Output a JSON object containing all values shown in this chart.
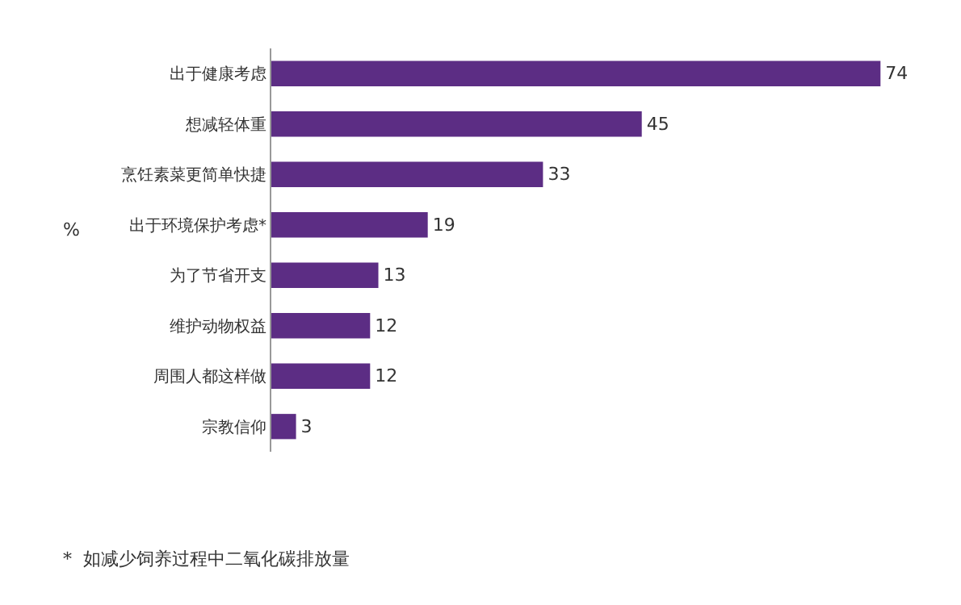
{
  "chart_data": {
    "type": "bar",
    "orientation": "horizontal",
    "categories": [
      "出于健康考虑",
      "想减轻体重",
      "烹饪素菜更简单快捷",
      "出于环境保护考虑*",
      "为了节省开支",
      "维护动物权益",
      "周围人都这样做",
      "宗教信仰"
    ],
    "values": [
      74,
      45,
      33,
      19,
      13,
      12,
      12,
      3
    ],
    "color": "#5c2d84",
    "data_labels": true,
    "ylabel": "%",
    "annotations": [
      "*  如减少饲养过程中二氧化碳排放量"
    ],
    "legend": false
  }
}
